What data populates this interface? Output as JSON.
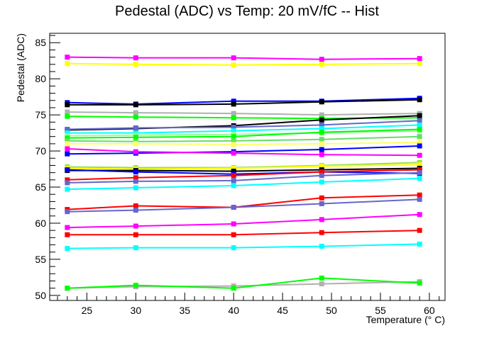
{
  "chart_data": {
    "type": "line",
    "title": "Pedestal (ADC) vs Temp: 20 mV/fC -- Hist",
    "xlabel": "Temperature (° C)",
    "ylabel": "Pedestal (ADC)",
    "xlim": [
      21.2,
      61.6
    ],
    "ylim": [
      49.3,
      86.3
    ],
    "x_ticks": [
      25,
      30,
      35,
      40,
      45,
      50,
      55,
      60
    ],
    "y_ticks": [
      50,
      55,
      60,
      65,
      70,
      75,
      80,
      85
    ],
    "grid": false,
    "legend": "none",
    "x": [
      23,
      30,
      40,
      49,
      59
    ],
    "series": [
      {
        "color": "#ff00ff",
        "values": [
          83.0,
          82.9,
          82.9,
          82.7,
          82.8
        ]
      },
      {
        "color": "#ffff00",
        "values": [
          82.1,
          82.0,
          81.9,
          82.0,
          82.1
        ]
      },
      {
        "color": "#0000ff",
        "values": [
          76.7,
          76.5,
          76.9,
          76.9,
          77.3
        ]
      },
      {
        "color": "#000000",
        "values": [
          76.4,
          76.4,
          76.5,
          76.8,
          77.1
        ]
      },
      {
        "color": "#b0b0b0",
        "values": [
          75.4,
          75.3,
          75.2,
          75.0,
          75.2
        ]
      },
      {
        "color": "#00ff00",
        "values": [
          74.8,
          74.7,
          74.6,
          74.5,
          74.6
        ]
      },
      {
        "color": "#000000",
        "values": [
          72.9,
          73.1,
          73.5,
          74.3,
          74.9
        ]
      },
      {
        "color": "#6666cc",
        "values": [
          73.0,
          73.2,
          73.3,
          73.6,
          74.2
        ]
      },
      {
        "color": "#00ffff",
        "values": [
          72.5,
          72.5,
          72.8,
          73.1,
          73.6
        ]
      },
      {
        "color": "#99ff99",
        "values": [
          72.1,
          72.2,
          72.3,
          72.5,
          72.8
        ]
      },
      {
        "color": "#00ff00",
        "values": [
          71.8,
          71.9,
          72.0,
          72.6,
          73.0
        ]
      },
      {
        "color": "#66dd66",
        "values": [
          71.4,
          71.3,
          71.4,
          71.6,
          72.0
        ]
      },
      {
        "color": "#ffff66",
        "values": [
          71.0,
          71.0,
          70.9,
          71.0,
          71.2
        ]
      },
      {
        "color": "#0000ff",
        "values": [
          69.6,
          69.7,
          69.9,
          70.2,
          70.7
        ]
      },
      {
        "color": "#ff00ff",
        "values": [
          70.3,
          69.9,
          69.7,
          69.5,
          69.4
        ]
      },
      {
        "color": "#99dd55",
        "values": [
          67.8,
          67.7,
          67.7,
          68.0,
          68.4
        ]
      },
      {
        "color": "#ffff00",
        "values": [
          67.6,
          67.5,
          67.6,
          67.9,
          68.1
        ]
      },
      {
        "color": "#000000",
        "values": [
          67.3,
          67.3,
          67.2,
          67.4,
          67.6
        ]
      },
      {
        "color": "#0000ff",
        "values": [
          67.4,
          67.1,
          66.8,
          67.1,
          66.9
        ]
      },
      {
        "color": "#ff0000",
        "values": [
          66.0,
          66.3,
          66.6,
          67.1,
          67.4
        ]
      },
      {
        "color": "#6666cc",
        "values": [
          65.6,
          65.8,
          65.9,
          66.6,
          67.0
        ]
      },
      {
        "color": "#00ffff",
        "values": [
          64.7,
          64.9,
          65.2,
          65.7,
          66.2
        ]
      },
      {
        "color": "#ff0000",
        "values": [
          61.9,
          62.4,
          62.2,
          63.5,
          63.9
        ]
      },
      {
        "color": "#6666cc",
        "values": [
          61.6,
          61.8,
          62.2,
          62.7,
          63.3
        ]
      },
      {
        "color": "#ff00ff",
        "values": [
          59.4,
          59.6,
          59.9,
          60.5,
          61.2
        ]
      },
      {
        "color": "#ff0000",
        "values": [
          58.4,
          58.4,
          58.4,
          58.7,
          59.0
        ]
      },
      {
        "color": "#00ffff",
        "values": [
          56.5,
          56.6,
          56.6,
          56.8,
          57.1
        ]
      },
      {
        "color": "#b0b0b0",
        "values": [
          51.0,
          51.2,
          51.3,
          51.6,
          51.9
        ]
      },
      {
        "color": "#00ff00",
        "values": [
          51.0,
          51.4,
          51.0,
          52.4,
          51.7
        ]
      }
    ]
  }
}
